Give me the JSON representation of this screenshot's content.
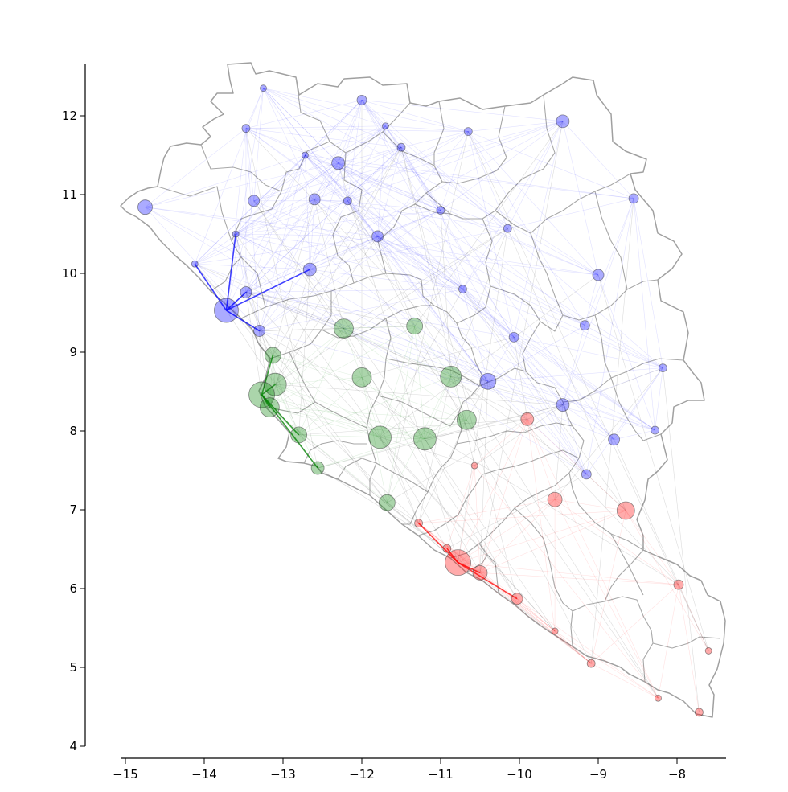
{
  "chart_data": {
    "type": "scatter",
    "title": "",
    "xlabel": "",
    "ylabel": "",
    "xlim": [
      -15.15,
      -7.35
    ],
    "ylim": [
      4.0,
      12.65
    ],
    "x_ticks": [
      -15,
      -14,
      -13,
      -12,
      -11,
      -10,
      -9,
      -8
    ],
    "y_ticks": [
      4,
      5,
      6,
      7,
      8,
      9,
      10,
      11,
      12
    ],
    "x_tick_labels": [
      "−15",
      "−14",
      "−13",
      "−12",
      "−11",
      "−10",
      "−9",
      "−8"
    ],
    "y_tick_labels": [
      "4",
      "5",
      "6",
      "7",
      "8",
      "9",
      "10",
      "11",
      "12"
    ],
    "grid": false,
    "colors": {
      "guinea": "#0000ff",
      "sierra_leone": "#008000",
      "liberia": "#ff0000",
      "cross_border": "#000000",
      "borders": "#a0a0a0"
    },
    "series": [
      {
        "color": "#0000ff",
        "points": [
          {
            "x": -13.25,
            "y": 12.35,
            "s": 4
          },
          {
            "x": -13.47,
            "y": 11.84,
            "s": 5
          },
          {
            "x": -12.0,
            "y": 12.2,
            "s": 6
          },
          {
            "x": -12.3,
            "y": 11.4,
            "s": 8
          },
          {
            "x": -11.7,
            "y": 11.87,
            "s": 4
          },
          {
            "x": -11.5,
            "y": 11.6,
            "s": 5
          },
          {
            "x": -12.72,
            "y": 11.5,
            "s": 4
          },
          {
            "x": -10.65,
            "y": 11.8,
            "s": 5
          },
          {
            "x": -9.45,
            "y": 11.93,
            "s": 8
          },
          {
            "x": -14.75,
            "y": 10.84,
            "s": 9
          },
          {
            "x": -13.37,
            "y": 10.92,
            "s": 7
          },
          {
            "x": -12.6,
            "y": 10.94,
            "s": 7
          },
          {
            "x": -12.18,
            "y": 10.92,
            "s": 5
          },
          {
            "x": -11.0,
            "y": 10.8,
            "s": 5
          },
          {
            "x": -11.8,
            "y": 10.47,
            "s": 7
          },
          {
            "x": -10.15,
            "y": 10.57,
            "s": 5
          },
          {
            "x": -8.55,
            "y": 10.95,
            "s": 6
          },
          {
            "x": -13.6,
            "y": 10.5,
            "s": 4
          },
          {
            "x": -14.12,
            "y": 10.12,
            "s": 4
          },
          {
            "x": -12.66,
            "y": 10.05,
            "s": 8
          },
          {
            "x": -10.72,
            "y": 9.8,
            "s": 5
          },
          {
            "x": -9.0,
            "y": 9.98,
            "s": 7
          },
          {
            "x": -13.72,
            "y": 9.53,
            "s": 15
          },
          {
            "x": -13.47,
            "y": 9.76,
            "s": 7
          },
          {
            "x": -13.3,
            "y": 9.27,
            "s": 7
          },
          {
            "x": -10.07,
            "y": 9.19,
            "s": 6
          },
          {
            "x": -9.17,
            "y": 9.34,
            "s": 6
          },
          {
            "x": -8.18,
            "y": 8.8,
            "s": 5
          },
          {
            "x": -10.4,
            "y": 8.63,
            "s": 10
          },
          {
            "x": -9.45,
            "y": 8.33,
            "s": 8
          },
          {
            "x": -8.8,
            "y": 7.89,
            "s": 7
          },
          {
            "x": -8.28,
            "y": 8.01,
            "s": 5
          },
          {
            "x": -9.15,
            "y": 7.45,
            "s": 6
          }
        ]
      },
      {
        "color": "#008000",
        "points": [
          {
            "x": -12.23,
            "y": 9.3,
            "s": 12
          },
          {
            "x": -11.33,
            "y": 9.33,
            "s": 10
          },
          {
            "x": -13.13,
            "y": 8.96,
            "s": 10
          },
          {
            "x": -12.0,
            "y": 8.68,
            "s": 12
          },
          {
            "x": -10.87,
            "y": 8.69,
            "s": 13
          },
          {
            "x": -13.1,
            "y": 8.59,
            "s": 14
          },
          {
            "x": -13.27,
            "y": 8.46,
            "s": 16
          },
          {
            "x": -13.17,
            "y": 8.3,
            "s": 12
          },
          {
            "x": -10.67,
            "y": 8.14,
            "s": 12
          },
          {
            "x": -12.8,
            "y": 7.95,
            "s": 10
          },
          {
            "x": -11.77,
            "y": 7.92,
            "s": 14
          },
          {
            "x": -11.2,
            "y": 7.9,
            "s": 14
          },
          {
            "x": -12.56,
            "y": 7.53,
            "s": 8
          },
          {
            "x": -11.68,
            "y": 7.09,
            "s": 10
          }
        ]
      },
      {
        "color": "#ff0000",
        "points": [
          {
            "x": -9.9,
            "y": 8.15,
            "s": 8
          },
          {
            "x": -10.57,
            "y": 7.56,
            "s": 4
          },
          {
            "x": -9.55,
            "y": 7.13,
            "s": 9
          },
          {
            "x": -8.65,
            "y": 6.99,
            "s": 11
          },
          {
            "x": -11.28,
            "y": 6.83,
            "s": 5
          },
          {
            "x": -10.92,
            "y": 6.51,
            "s": 5
          },
          {
            "x": -10.78,
            "y": 6.33,
            "s": 16
          },
          {
            "x": -10.5,
            "y": 6.2,
            "s": 9
          },
          {
            "x": -10.03,
            "y": 5.87,
            "s": 7
          },
          {
            "x": -7.98,
            "y": 6.05,
            "s": 6
          },
          {
            "x": -9.55,
            "y": 5.46,
            "s": 4
          },
          {
            "x": -9.09,
            "y": 5.05,
            "s": 5
          },
          {
            "x": -7.6,
            "y": 5.21,
            "s": 4
          },
          {
            "x": -8.24,
            "y": 4.61,
            "s": 4
          },
          {
            "x": -7.72,
            "y": 4.43,
            "s": 5
          }
        ]
      }
    ]
  }
}
